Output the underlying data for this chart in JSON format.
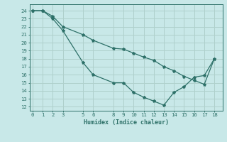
{
  "xlabel": "Humidex (Indice chaleur)",
  "ylabel": "",
  "background_color": "#c8e8e8",
  "grid_color": "#afd0cc",
  "line_color": "#2d7068",
  "line1_x": [
    0,
    1,
    2,
    3,
    5,
    6,
    8,
    9,
    10,
    11,
    12,
    13,
    14,
    15,
    16,
    17,
    18
  ],
  "line1_y": [
    24,
    24,
    23.3,
    22.0,
    21.0,
    20.3,
    19.3,
    19.2,
    18.7,
    18.2,
    17.8,
    17.0,
    16.5,
    15.8,
    15.3,
    14.8,
    18.0
  ],
  "line2_x": [
    0,
    1,
    2,
    3,
    5,
    6,
    8,
    9,
    10,
    11,
    12,
    13,
    14,
    15,
    16,
    17,
    18
  ],
  "line2_y": [
    24,
    24,
    23.0,
    21.5,
    17.5,
    16.0,
    15.0,
    15.0,
    13.8,
    13.2,
    12.7,
    12.2,
    13.8,
    14.5,
    15.7,
    15.9,
    18.0
  ],
  "xticks": [
    0,
    1,
    2,
    3,
    5,
    6,
    8,
    9,
    10,
    11,
    12,
    13,
    14,
    15,
    16,
    17,
    18
  ],
  "yticks": [
    12,
    13,
    14,
    15,
    16,
    17,
    18,
    19,
    20,
    21,
    22,
    23,
    24
  ],
  "xlim": [
    -0.3,
    18.8
  ],
  "ylim": [
    11.5,
    24.8
  ]
}
